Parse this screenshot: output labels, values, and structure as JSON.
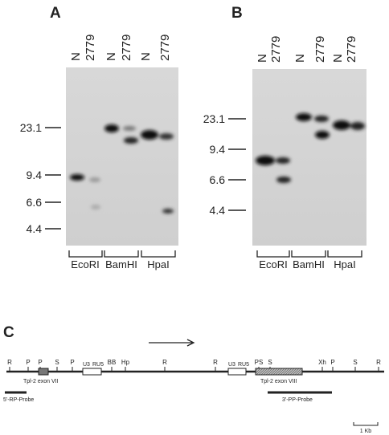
{
  "panels": [
    {
      "label": "A",
      "lanes": [
        "N",
        "2779",
        "N",
        "2779",
        "N",
        "2779"
      ],
      "markers": [
        "23.1",
        "9.4",
        "6.6",
        "4.4"
      ],
      "enzymes": [
        "EcoRI",
        "BamHI",
        "HpaI"
      ]
    },
    {
      "label": "B",
      "lanes": [
        "N",
        "2779",
        "N",
        "2779",
        "N",
        "2779"
      ],
      "markers": [
        "23.1",
        "9.4",
        "6.6",
        "4.4"
      ],
      "enzymes": [
        "EcoRI",
        "BamHI",
        "HpaI"
      ]
    }
  ],
  "map": {
    "label": "C",
    "sites": [
      "R",
      "P",
      "P",
      "S",
      "P",
      "BB",
      "Hp",
      "R",
      "R",
      "PS",
      "S",
      "Xh",
      "P",
      "S",
      "R"
    ],
    "ltr": [
      "U3",
      "RU5",
      "U3",
      "RU5"
    ],
    "exon_vii": "Tpl-2 exon VII",
    "exon_viii": "Tpl-2 exon VIII",
    "probe_5": "5'-RP-Probe",
    "probe_3": "3'-PP-Probe",
    "scale": "1 Kb"
  }
}
